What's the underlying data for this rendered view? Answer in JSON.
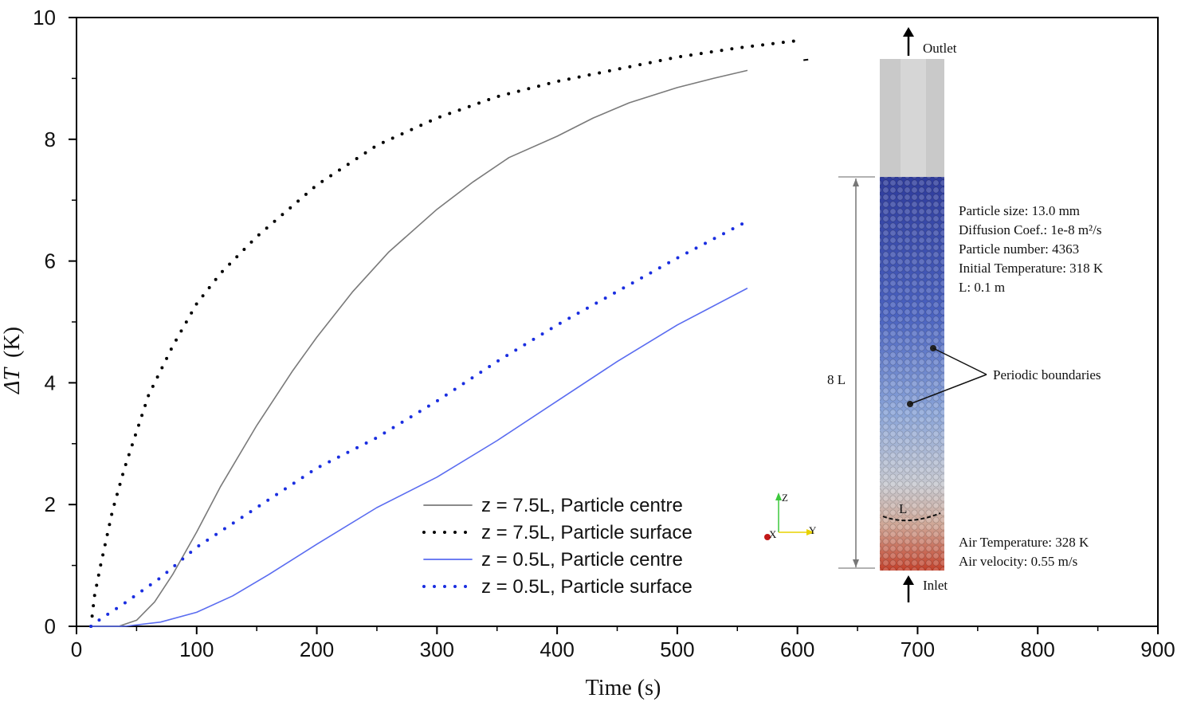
{
  "chart_data": {
    "type": "line",
    "xlabel": "Time (s)",
    "ylabel_symbol": "ΔT",
    "ylabel_unit": "(K)",
    "xlim": [
      0,
      900
    ],
    "ylim": [
      0,
      10
    ],
    "x_ticks": [
      0,
      100,
      200,
      300,
      400,
      500,
      600,
      700,
      800,
      900
    ],
    "y_ticks": [
      0,
      2,
      4,
      6,
      8,
      10
    ],
    "grid": false,
    "legend_position": "lower-center",
    "series": [
      {
        "name": "z = 7.5L, Particle centre",
        "color": "#7a7a7a",
        "style": "solid",
        "x": [
          12,
          35,
          50,
          65,
          80,
          100,
          120,
          150,
          180,
          200,
          230,
          260,
          300,
          330,
          360,
          400,
          430,
          460,
          500,
          530,
          558
        ],
        "y": [
          0,
          0,
          0.1,
          0.4,
          0.85,
          1.55,
          2.3,
          3.3,
          4.2,
          4.75,
          5.5,
          6.15,
          6.85,
          7.3,
          7.7,
          8.05,
          8.35,
          8.6,
          8.85,
          9.0,
          9.13
        ]
      },
      {
        "name": "z = 7.5L, Particle surface",
        "color": "#000000",
        "style": "dotted",
        "x": [
          12,
          15,
          20,
          30,
          40,
          50,
          60,
          80,
          100,
          120,
          150,
          200,
          250,
          300,
          350,
          400,
          450,
          500,
          550,
          600
        ],
        "y": [
          0,
          0.5,
          1.0,
          1.9,
          2.6,
          3.2,
          3.8,
          4.6,
          5.3,
          5.8,
          6.4,
          7.25,
          7.9,
          8.35,
          8.7,
          8.95,
          9.15,
          9.35,
          9.5,
          9.62
        ]
      },
      {
        "name": "z = 0.5L, Particle centre",
        "color": "#5a6cf0",
        "style": "solid",
        "x": [
          12,
          40,
          70,
          100,
          130,
          160,
          200,
          250,
          300,
          350,
          400,
          450,
          500,
          558
        ],
        "y": [
          0,
          0,
          0.07,
          0.23,
          0.5,
          0.85,
          1.35,
          1.95,
          2.45,
          3.05,
          3.7,
          4.35,
          4.95,
          5.55
        ]
      },
      {
        "name": "z = 0.5L, Particle surface",
        "color": "#1a2ee0",
        "style": "dotted",
        "x": [
          12,
          20,
          40,
          70,
          100,
          150,
          200,
          250,
          300,
          350,
          400,
          450,
          500,
          555
        ],
        "y": [
          0,
          0.12,
          0.38,
          0.8,
          1.3,
          1.95,
          2.6,
          3.1,
          3.7,
          4.35,
          4.95,
          5.5,
          6.05,
          6.62
        ]
      }
    ],
    "extra_segments": [
      {
        "color": "#000000",
        "style": "solid",
        "x": [
          605,
          609
        ],
        "y": [
          9.3,
          9.31
        ]
      }
    ]
  },
  "inset": {
    "outlet_label": "Outlet",
    "inlet_label": "Inlet",
    "height_label": "8 L",
    "length_label": "L",
    "info_lines": [
      "Particle size: 13.0 mm",
      "Diffusion Coef.: 1e-8 m²/s",
      "Particle number: 4363",
      "Initial Temperature: 318 K",
      "L: 0.1 m"
    ],
    "boundary_label": "Periodic boundaries",
    "air_lines": [
      "Air Temperature: 328 K",
      "Air velocity: 0.55 m/s"
    ],
    "axis_triad": {
      "x": "X",
      "y": "Y",
      "z": "Z"
    },
    "colors": {
      "column_top": "#c9c9c9",
      "particle_top": "#3340a0",
      "particle_mid": "#8aa4d8",
      "particle_low": "#c8c8cc",
      "particle_bottom": "#c84a2a"
    }
  }
}
